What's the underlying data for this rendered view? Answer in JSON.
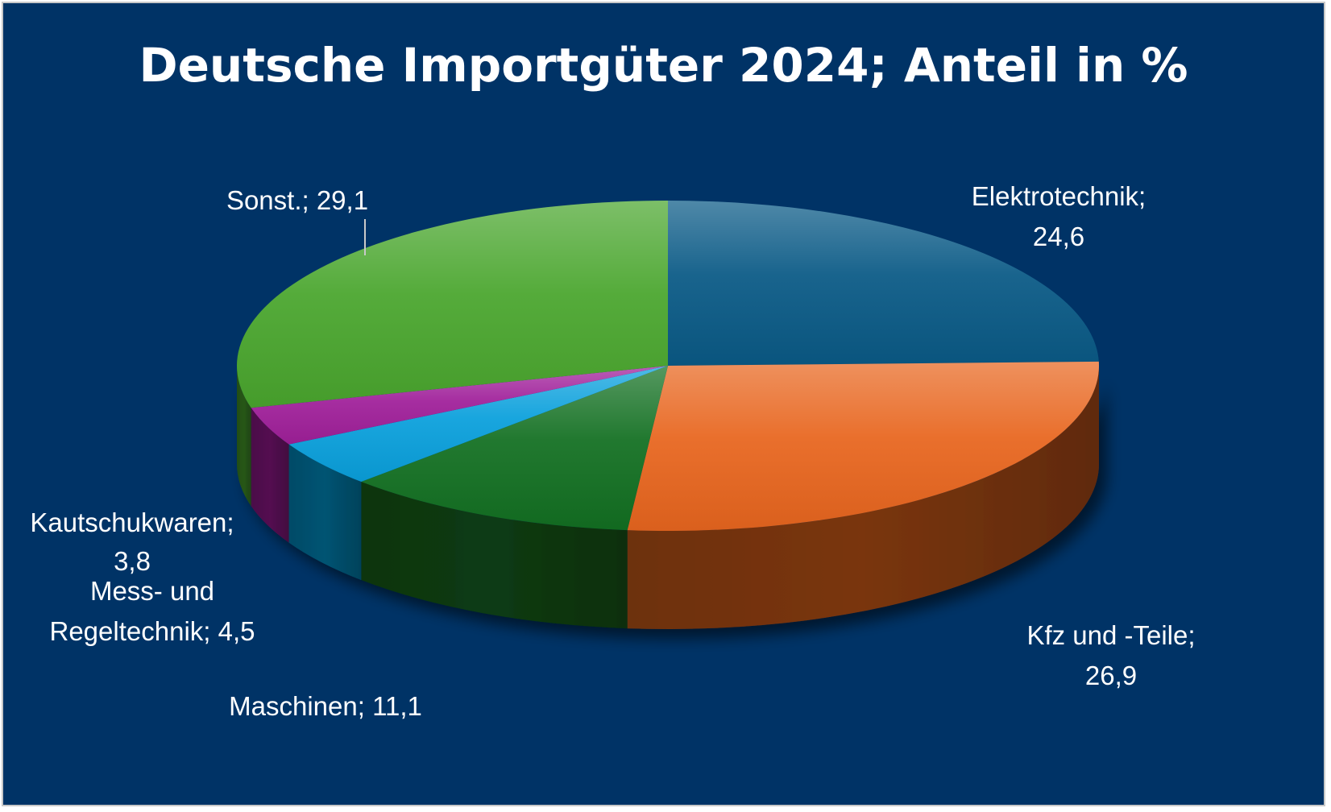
{
  "chart_data": {
    "type": "pie",
    "title": "Deutsche Importgüter 2024; Anteil in %",
    "slices": [
      {
        "category": "Elektrotechnik",
        "value": 24.6,
        "label_line1": "Elektrotechnik;",
        "label_line2": "24,6",
        "color": "#0a5a86"
      },
      {
        "category": "Kfz und -Teile",
        "value": 26.9,
        "label_line1": "Kfz und -Teile;",
        "label_line2": "26,9",
        "color": "#e8661f"
      },
      {
        "category": "Maschinen",
        "value": 11.1,
        "label_line1": "Maschinen; 11,1",
        "label_line2": "",
        "color": "#137022"
      },
      {
        "category": "Mess- und Regeltechnik",
        "value": 4.5,
        "label_line1": "Mess- und",
        "label_line2": "Regeltechnik; 4,5",
        "color": "#0aa0dc"
      },
      {
        "category": "Kautschukwaren",
        "value": 3.8,
        "label_line1": "Kautschukwaren;",
        "label_line2": "3,8",
        "color": "#a0209a"
      },
      {
        "category": "Sonst.",
        "value": 29.1,
        "label_line1": "Sonst.; 29,1",
        "label_line2": "",
        "color": "#4aa62e"
      }
    ],
    "legend": "none"
  }
}
